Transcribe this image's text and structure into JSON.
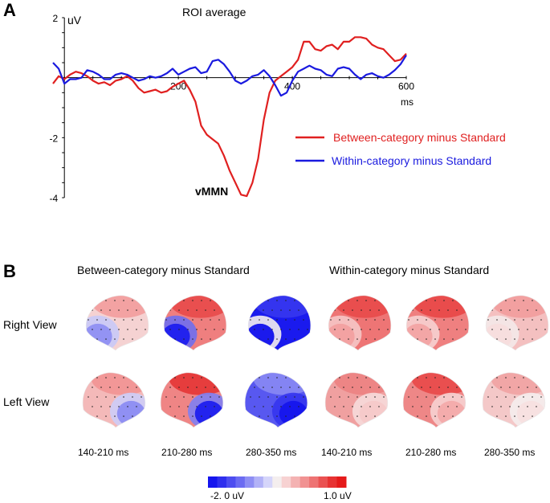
{
  "panel_a": {
    "label": "A",
    "chart_data": {
      "type": "line",
      "title": "ROI average",
      "ylabel": "uV",
      "xlabel": "ms",
      "xlim": [
        -20,
        600
      ],
      "ylim": [
        -4,
        2
      ],
      "xticks": [
        200,
        400,
        600
      ],
      "xtick_labels": [
        "200",
        "400",
        "600"
      ],
      "yticks": [
        2,
        -2,
        -4
      ],
      "ytick_labels": [
        "2",
        "-2",
        "-4"
      ],
      "annotation": "vMMN",
      "series": [
        {
          "name": "Between-category minus  Standard",
          "color": "#e02020",
          "x": [
            -20,
            -10,
            0,
            10,
            20,
            30,
            40,
            50,
            60,
            70,
            80,
            90,
            100,
            110,
            120,
            130,
            140,
            150,
            160,
            170,
            180,
            190,
            200,
            210,
            220,
            230,
            240,
            250,
            260,
            270,
            280,
            290,
            300,
            310,
            320,
            330,
            340,
            350,
            360,
            370,
            380,
            390,
            400,
            410,
            420,
            430,
            440,
            450,
            460,
            470,
            480,
            490,
            500,
            510,
            520,
            530,
            540,
            550,
            560,
            570,
            580,
            590,
            600
          ],
          "values": [
            -0.2,
            0.05,
            -0.05,
            0.1,
            0.2,
            0.15,
            0.05,
            -0.1,
            -0.2,
            -0.15,
            -0.25,
            -0.1,
            -0.05,
            0.05,
            -0.1,
            -0.35,
            -0.5,
            -0.45,
            -0.4,
            -0.5,
            -0.45,
            -0.3,
            -0.2,
            -0.1,
            -0.4,
            -0.8,
            -1.6,
            -1.9,
            -2.05,
            -2.2,
            -2.6,
            -3.1,
            -3.5,
            -3.9,
            -3.95,
            -3.5,
            -2.7,
            -1.4,
            -0.5,
            -0.1,
            0.05,
            0.2,
            0.35,
            0.6,
            1.2,
            1.2,
            0.95,
            0.9,
            1.05,
            1.1,
            0.95,
            1.2,
            1.2,
            1.35,
            1.35,
            1.3,
            1.1,
            1.0,
            0.95,
            0.75,
            0.55,
            0.6,
            0.8
          ]
        },
        {
          "name": "Within-category minus  Standard",
          "color": "#1a1adf",
          "x": [
            -20,
            -10,
            0,
            10,
            20,
            30,
            40,
            50,
            60,
            70,
            80,
            90,
            100,
            110,
            120,
            130,
            140,
            150,
            160,
            170,
            180,
            190,
            200,
            210,
            220,
            230,
            240,
            250,
            260,
            270,
            280,
            290,
            300,
            310,
            320,
            330,
            340,
            350,
            360,
            370,
            380,
            390,
            400,
            410,
            420,
            430,
            440,
            450,
            460,
            470,
            480,
            490,
            500,
            510,
            520,
            530,
            540,
            550,
            560,
            570,
            580,
            590,
            600
          ],
          "values": [
            0.5,
            0.3,
            -0.2,
            -0.05,
            -0.05,
            0.0,
            0.25,
            0.2,
            0.1,
            -0.05,
            -0.05,
            0.1,
            0.15,
            0.1,
            0.0,
            -0.1,
            -0.05,
            0.05,
            0.0,
            0.05,
            0.15,
            0.3,
            0.1,
            0.2,
            0.3,
            0.35,
            0.15,
            0.2,
            0.55,
            0.6,
            0.45,
            0.2,
            -0.1,
            -0.2,
            -0.1,
            0.05,
            0.1,
            0.25,
            0.05,
            -0.25,
            -0.6,
            -0.5,
            -0.1,
            0.2,
            0.3,
            0.4,
            0.3,
            0.25,
            0.1,
            0.05,
            0.3,
            0.35,
            0.3,
            0.1,
            -0.05,
            0.1,
            0.15,
            0.05,
            0.0,
            0.1,
            0.25,
            0.45,
            0.75
          ]
        }
      ]
    }
  },
  "panel_b": {
    "label": "B",
    "header_between": "Between-category minus Standard",
    "header_within": "Within-category minus Standard",
    "row_right": "Right View",
    "row_left": "Left View",
    "time_windows": [
      "140-210 ms",
      "210-280 ms",
      "280-350 ms",
      "140-210 ms",
      "210-280 ms",
      "280-350 ms"
    ],
    "colorbar": {
      "min_label": "-2. 0 uV",
      "max_label": "1.0 uV",
      "min_value": -2.0,
      "max_value": 1.0,
      "colors": [
        "#1515ee",
        "#2f2fee",
        "#4d4df0",
        "#6b6bf2",
        "#8e8ef4",
        "#b2b2f7",
        "#d5d5fa",
        "#f4eeee",
        "#f7d2d2",
        "#f4b2b2",
        "#f19292",
        "#ee7373",
        "#ea5252",
        "#e73333",
        "#e51a1a"
      ]
    },
    "maps": [
      {
        "view": "right",
        "window": 0,
        "base": "#f5d2d2",
        "top": "#f29a9a",
        "patch": "#8f8ff2",
        "patch2": "#c9c9f7"
      },
      {
        "view": "right",
        "window": 1,
        "base": "#ef7f7f",
        "top": "#e84646",
        "patch": "#1e1eee",
        "patch2": "#6f6ff0"
      },
      {
        "view": "right",
        "window": 2,
        "base": "#1a1aee",
        "top": "#3a3aef",
        "patch": "#1010ec",
        "patch2": "#f4eeee"
      },
      {
        "view": "right",
        "window": 3,
        "base": "#ee7575",
        "top": "#e84848",
        "patch": "#f2a0a0",
        "patch2": "#f5c6c6"
      },
      {
        "view": "right",
        "window": 4,
        "base": "#ef8080",
        "top": "#e84343",
        "patch": "#f2a4a4",
        "patch2": "#f6d0d0"
      },
      {
        "view": "right",
        "window": 5,
        "base": "#f4c0c0",
        "top": "#f19a9a",
        "patch": "#f7dddd",
        "patch2": "#f4e9e9"
      },
      {
        "view": "left",
        "window": 0,
        "base": "#f4b9b9",
        "top": "#f19191",
        "patch": "#8c8cf2",
        "patch2": "#cdcdf8"
      },
      {
        "view": "left",
        "window": 1,
        "base": "#ef8585",
        "top": "#e43030",
        "patch": "#1e1eee",
        "patch2": "#8080f2"
      },
      {
        "view": "left",
        "window": 2,
        "base": "#5858f0",
        "top": "#8c8cf3",
        "patch": "#1515ec",
        "patch2": "#3535ee"
      },
      {
        "view": "left",
        "window": 3,
        "base": "#f0a0a0",
        "top": "#ec8080",
        "patch": "#f5c9c9",
        "patch2": "#f6dada"
      },
      {
        "view": "left",
        "window": 4,
        "base": "#ee8787",
        "top": "#e74545",
        "patch": "#f3aaaa",
        "patch2": "#f6d2d2"
      },
      {
        "view": "left",
        "window": 5,
        "base": "#f4c8c8",
        "top": "#f0a0a0",
        "patch": "#f7e0e0",
        "patch2": "#f5eded"
      }
    ]
  }
}
